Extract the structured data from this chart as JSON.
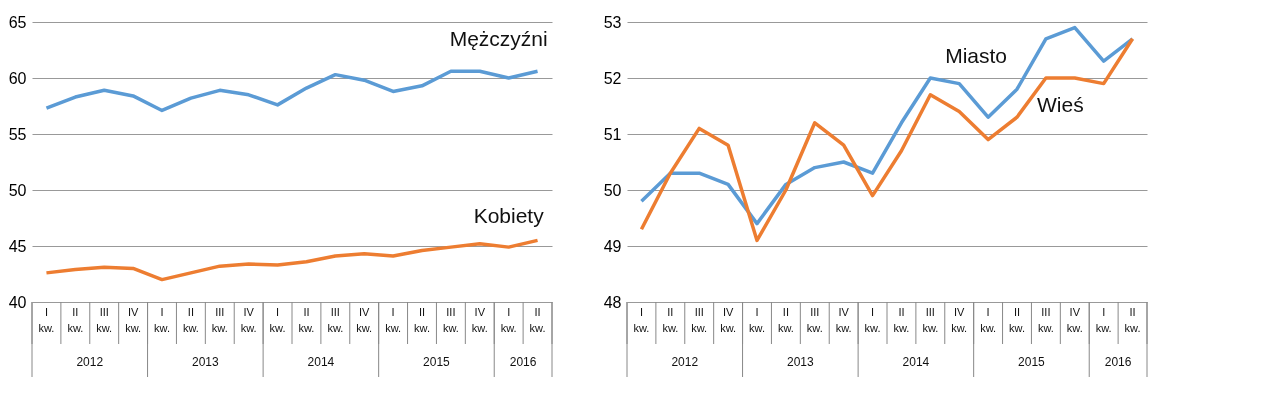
{
  "chart_data": [
    {
      "type": "line",
      "categories": [
        "I kw.",
        "II kw.",
        "III kw.",
        "IV kw.",
        "I kw.",
        "II kw.",
        "III kw.",
        "IV kw.",
        "I kw.",
        "II kw.",
        "III kw.",
        "IV kw.",
        "I kw.",
        "II kw.",
        "III kw.",
        "IV kw.",
        "I kw.",
        "II kw."
      ],
      "series": [
        {
          "name": "Mężczyźni",
          "color": "#5b9bd5",
          "values": [
            57.3,
            58.3,
            58.9,
            58.4,
            57.1,
            58.2,
            58.9,
            58.5,
            57.6,
            59.1,
            60.3,
            59.8,
            58.8,
            59.3,
            60.6,
            60.6,
            60.0,
            60.6
          ]
        },
        {
          "name": "Kobiety",
          "color": "#ed7d31",
          "values": [
            42.6,
            42.9,
            43.1,
            43.0,
            42.0,
            42.6,
            43.2,
            43.4,
            43.3,
            43.6,
            44.1,
            44.3,
            44.1,
            44.6,
            44.9,
            45.2,
            44.9,
            45.5
          ]
        }
      ],
      "ylim": [
        40,
        65
      ],
      "yticks": [
        40,
        45,
        50,
        55,
        60,
        65
      ],
      "grid": "y",
      "legend": false,
      "marker": "none",
      "annotations": [
        "2012",
        "2013",
        "2014",
        "2015",
        "2016"
      ]
    },
    {
      "type": "line",
      "categories": [
        "I kw.",
        "II kw.",
        "III kw.",
        "IV kw.",
        "I kw.",
        "II kw.",
        "III kw.",
        "IV kw.",
        "I kw.",
        "II kw.",
        "III kw.",
        "IV kw.",
        "I kw.",
        "II kw.",
        "III kw.",
        "IV kw.",
        "I kw.",
        "II kw."
      ],
      "series": [
        {
          "name": "Miasto",
          "color": "#5b9bd5",
          "values": [
            49.8,
            50.3,
            50.3,
            50.1,
            49.4,
            50.1,
            50.4,
            50.5,
            50.3,
            51.2,
            52.0,
            51.9,
            51.3,
            51.8,
            52.7,
            52.9,
            52.3,
            52.7
          ]
        },
        {
          "name": "Wieś",
          "color": "#ed7d31",
          "values": [
            49.3,
            50.3,
            51.1,
            50.8,
            49.1,
            50.0,
            51.2,
            50.8,
            49.9,
            50.7,
            51.7,
            51.4,
            50.9,
            51.3,
            52.0,
            52.0,
            51.9,
            52.7
          ]
        }
      ],
      "ylim": [
        48,
        53
      ],
      "yticks": [
        48,
        49,
        50,
        51,
        52,
        53
      ],
      "grid": "y",
      "legend": false,
      "marker": "none",
      "annotations": [
        "2012",
        "2013",
        "2014",
        "2015",
        "2016"
      ]
    }
  ]
}
